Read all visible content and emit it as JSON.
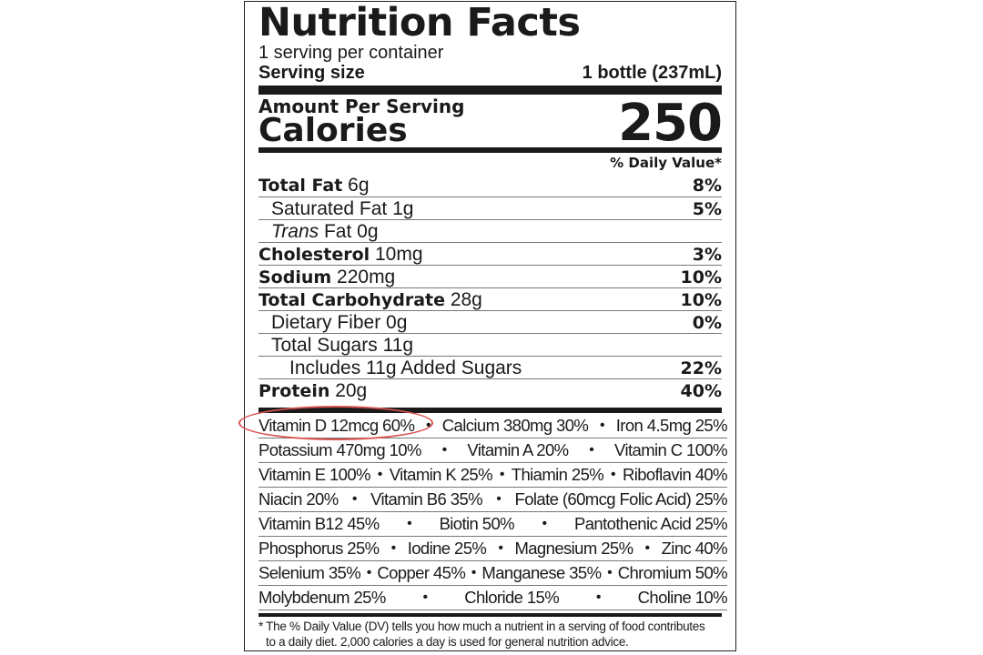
{
  "title": "Nutrition Facts",
  "servings_per_container": "1 serving per container",
  "serving_size_label": "Serving size",
  "serving_size_value": "1 bottle (237mL)",
  "amount_per_serving": "Amount Per Serving",
  "calories_label": "Calories",
  "calories_value": "250",
  "daily_value_header": "% Daily Value*",
  "nutrients": [
    {
      "name": "Total Fat",
      "amount": "6g",
      "dv": "8%"
    },
    {
      "name": "Saturated Fat",
      "amount": "1g",
      "dv": "5%"
    },
    {
      "name_italic": "Trans",
      "name": "Fat",
      "amount": "0g",
      "dv": ""
    },
    {
      "name": "Cholesterol",
      "amount": "10mg",
      "dv": "3%"
    },
    {
      "name": "Sodium",
      "amount": "220mg",
      "dv": "10%"
    },
    {
      "name": "Total Carbohydrate",
      "amount": "28g",
      "dv": "10%"
    },
    {
      "name": "Dietary Fiber",
      "amount": "0g",
      "dv": "0%"
    },
    {
      "name": "Total Sugars",
      "amount": "11g",
      "dv": ""
    },
    {
      "name": "Includes 11g Added Sugars",
      "amount": "",
      "dv": "22%"
    },
    {
      "name": "Protein",
      "amount": "20g",
      "dv": "40%"
    }
  ],
  "vitamin_rows": [
    [
      "Vitamin D 12mcg 60%",
      "Calcium 380mg 30%",
      "Iron 4.5mg 25%"
    ],
    [
      "Potassium 470mg 10%",
      "Vitamin A 20%",
      "Vitamin C 100%"
    ],
    [
      "Vitamin E 100%",
      "Vitamin K 25%",
      "Thiamin 25%",
      "Riboflavin 40%"
    ],
    [
      "Niacin 20%",
      "Vitamin B6 35%",
      "Folate (60mcg Folic Acid) 25%"
    ],
    [
      "Vitamin B12 45%",
      "Biotin 50%",
      "Pantothenic Acid 25%"
    ],
    [
      "Phosphorus 25%",
      "Iodine 25%",
      "Magnesium 25%",
      "Zinc 40%"
    ],
    [
      "Selenium 35%",
      "Copper 45%",
      "Manganese 35%",
      "Chromium 50%"
    ],
    [
      "Molybdenum 25%",
      "Chloride 15%",
      "Choline 10%"
    ]
  ],
  "bullet": "•",
  "footnote_line1": "* The % Daily Value (DV) tells you how much a nutrient in a serving of food contributes",
  "footnote_line2": "to a daily diet. 2,000 calories a day is used for general nutrition advice.",
  "highlight_color": "#d9534f",
  "highlighted_item": "Vitamin D 12mcg 60%"
}
